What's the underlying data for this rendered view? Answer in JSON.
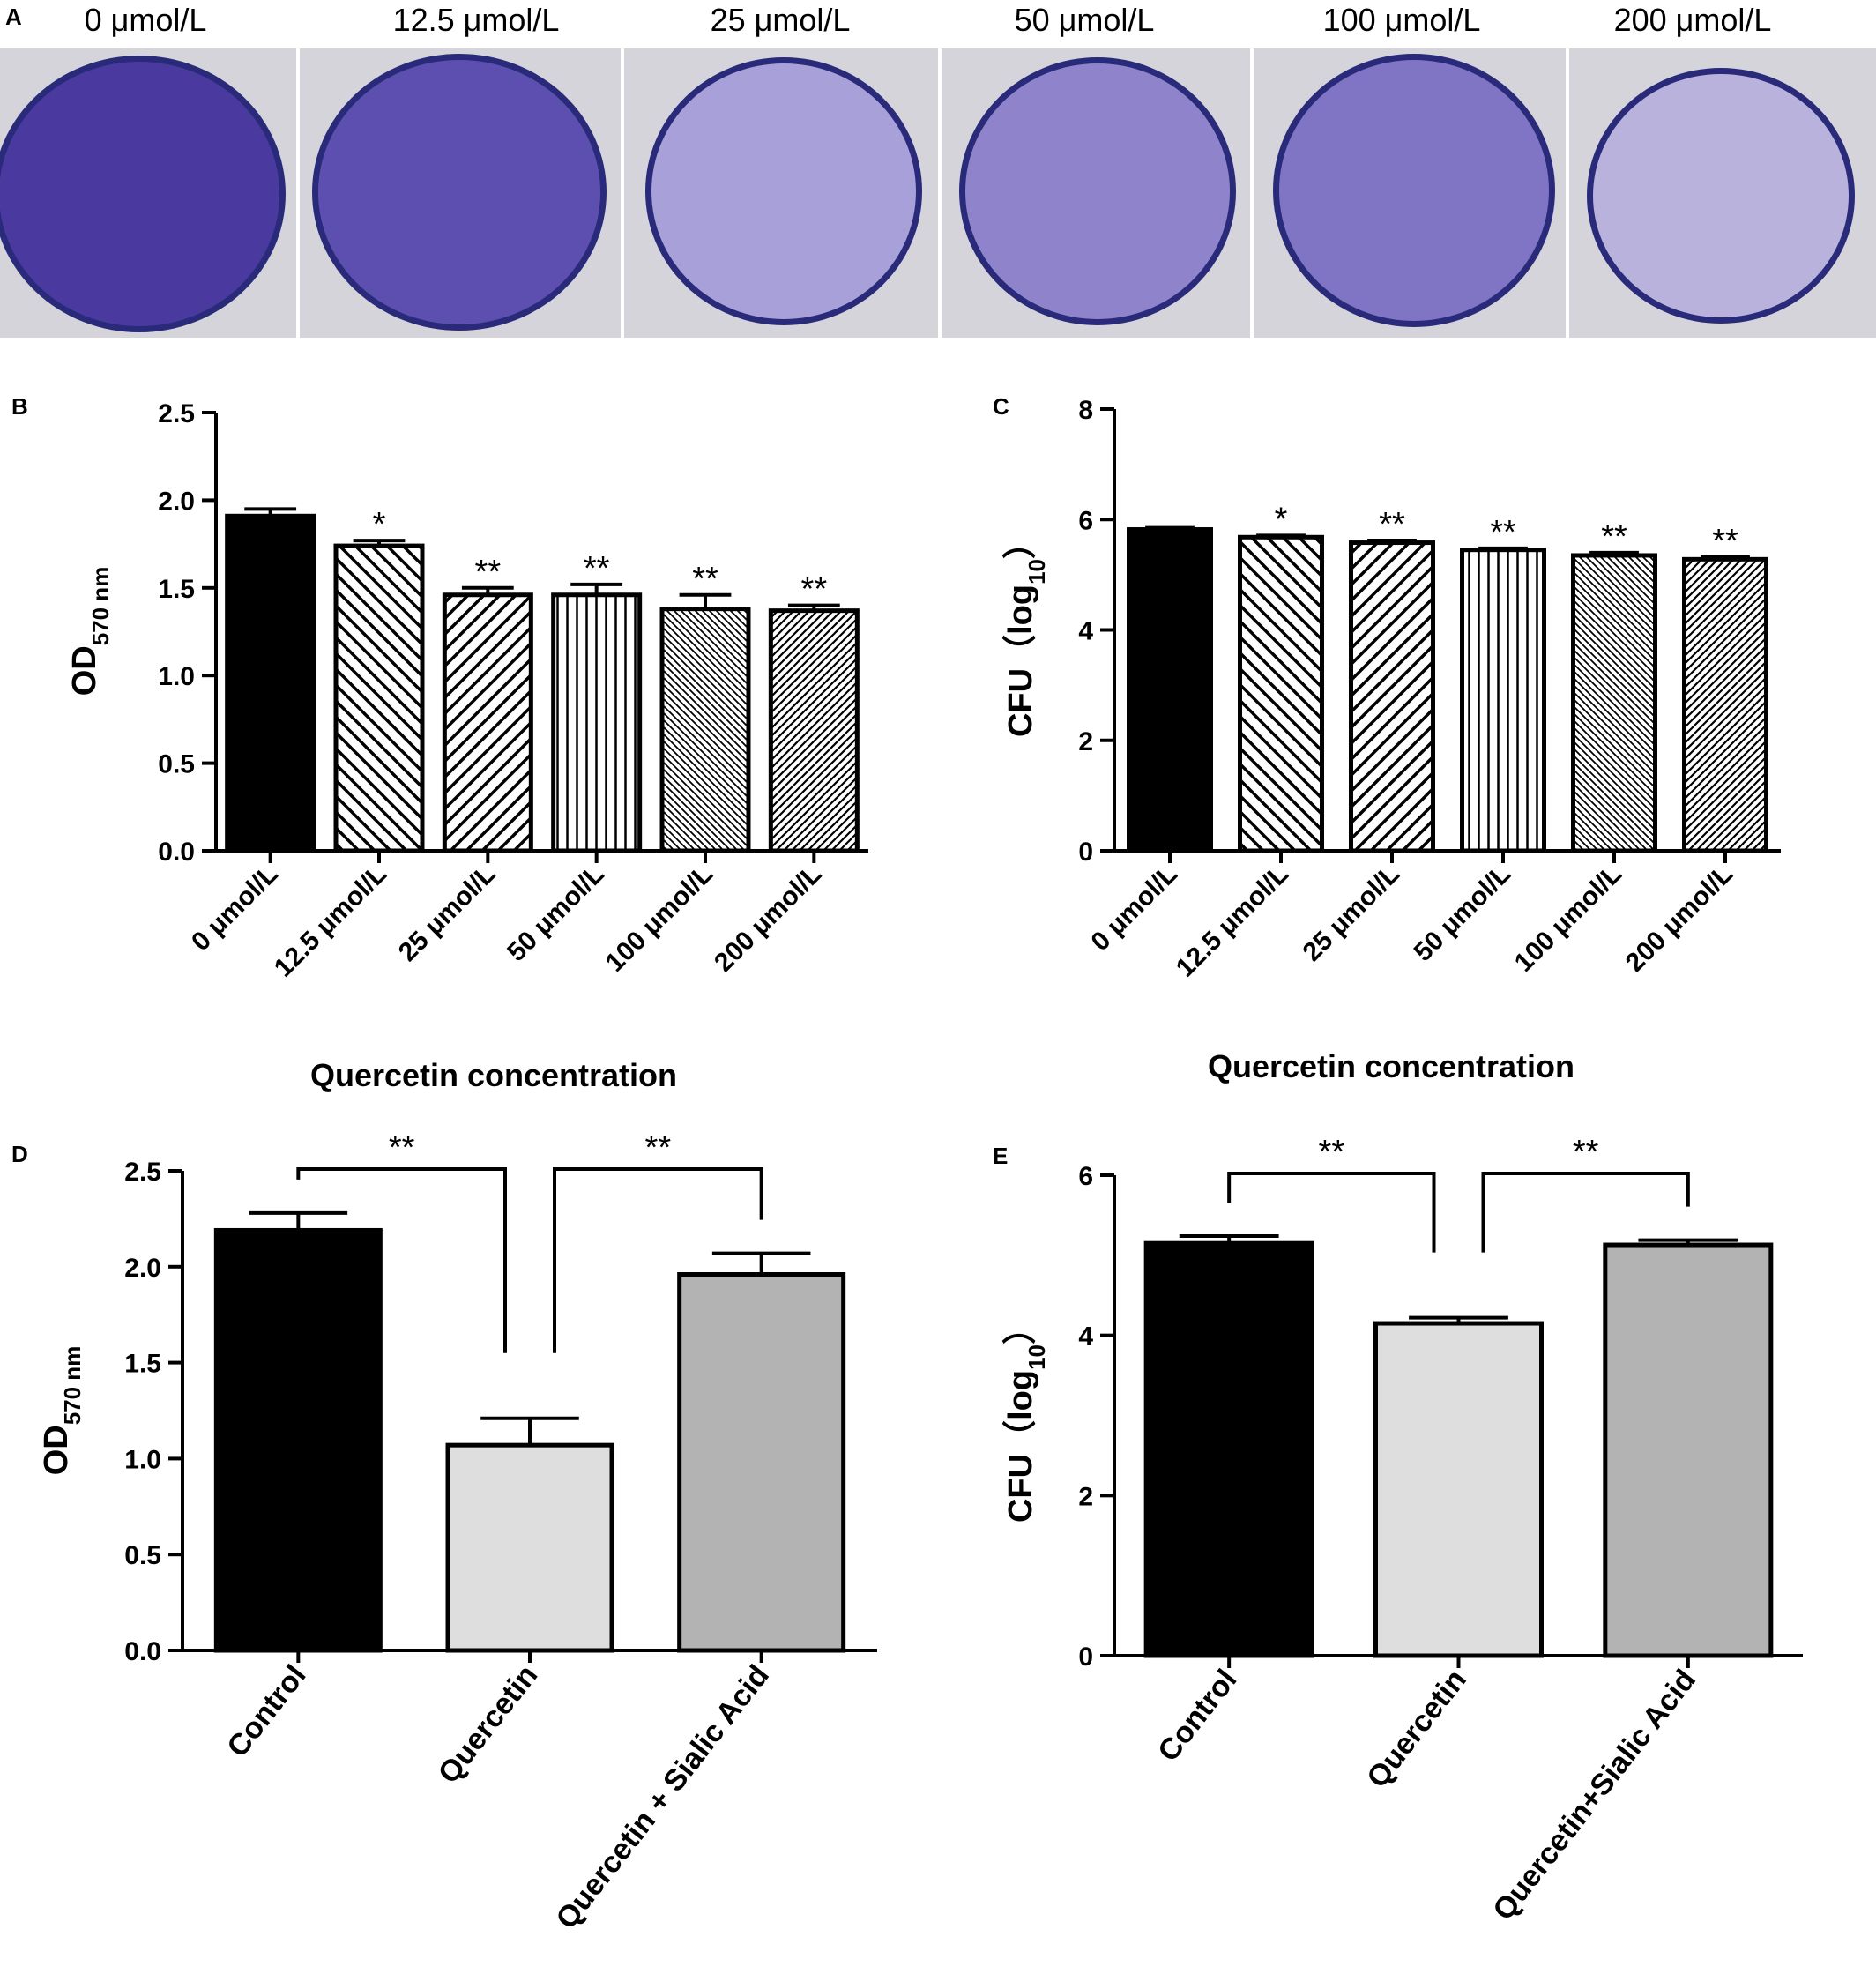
{
  "panel_a": {
    "letter": "A",
    "wells": [
      {
        "label": "0 μmol/L",
        "stain": "#4a3aa0"
      },
      {
        "label": "12.5 μmol/L",
        "stain": "#5c4fb0"
      },
      {
        "label": "25 μmol/L",
        "stain": "#a8a0d8"
      },
      {
        "label": "50 μmol/L",
        "stain": "#8f84cc"
      },
      {
        "label": "100 μmol/L",
        "stain": "#8074c4"
      },
      {
        "label": "200 μmol/L",
        "stain": "#b8b2dc"
      }
    ]
  },
  "chart_data": [
    {
      "letter": "B",
      "type": "bar",
      "ylabel": "OD",
      "ylabel_sub": "570 nm",
      "xlabel": "Quercetin concentration",
      "ylim": [
        0,
        2.5
      ],
      "yticks": [
        "0.0",
        "0.5",
        "1.0",
        "1.5",
        "2.0",
        "2.5"
      ],
      "categories": [
        "0 μmol/L",
        "12.5 μmol/L",
        "25 μmol/L",
        "50 μmol/L",
        "100 μmol/L",
        "200 μmol/L"
      ],
      "values": [
        1.91,
        1.74,
        1.46,
        1.46,
        1.38,
        1.37
      ],
      "errors": [
        0.04,
        0.03,
        0.04,
        0.06,
        0.08,
        0.03
      ],
      "significance": [
        "",
        "*",
        "**",
        "**",
        "**",
        "**"
      ],
      "patterns": [
        "solid",
        "back",
        "fwd",
        "vert",
        "backfine",
        "fwdfine"
      ]
    },
    {
      "letter": "C",
      "type": "bar",
      "ylabel": "CFU（log",
      "ylabel_sub": "10",
      "ylabel_end": "）",
      "xlabel": "Quercetin concentration",
      "ylim": [
        0,
        8
      ],
      "yticks": [
        "0",
        "2",
        "4",
        "6",
        "8"
      ],
      "categories": [
        "0 μmol/L",
        "12.5 μmol/L",
        "25 μmol/L",
        "50 μmol/L",
        "100 μmol/L",
        "200 μmol/L"
      ],
      "values": [
        5.82,
        5.68,
        5.58,
        5.45,
        5.35,
        5.28
      ],
      "errors": [
        0.03,
        0.03,
        0.04,
        0.03,
        0.05,
        0.04
      ],
      "significance": [
        "",
        "*",
        "**",
        "**",
        "**",
        "**"
      ],
      "patterns": [
        "solid",
        "back",
        "fwd",
        "vert",
        "backfine",
        "fwdfine"
      ]
    },
    {
      "letter": "D",
      "type": "bar",
      "ylabel": "OD",
      "ylabel_sub": "570 nm",
      "xlabel": "",
      "ylim": [
        0,
        2.5
      ],
      "yticks": [
        "0.0",
        "0.5",
        "1.0",
        "1.5",
        "2.0",
        "2.5"
      ],
      "categories": [
        "Control",
        "Quercetin",
        "Quercetin + Sialic Acid"
      ],
      "values": [
        2.19,
        1.07,
        1.96
      ],
      "errors": [
        0.09,
        0.14,
        0.11
      ],
      "fills": [
        "#000000",
        "#dedede",
        "#b3b3b3"
      ],
      "brackets": [
        {
          "from": 0,
          "to": 1,
          "label": "**"
        },
        {
          "from": 1,
          "to": 2,
          "label": "**"
        }
      ]
    },
    {
      "letter": "E",
      "type": "bar",
      "ylabel": "CFU（log",
      "ylabel_sub": "10",
      "ylabel_end": "）",
      "xlabel": "",
      "ylim": [
        0,
        6
      ],
      "yticks": [
        "0",
        "2",
        "4",
        "6"
      ],
      "categories": [
        "Control",
        "Quercetin",
        "Quercetin+Sialic Acid"
      ],
      "values": [
        5.15,
        4.15,
        5.13
      ],
      "errors": [
        0.09,
        0.07,
        0.06
      ],
      "fills": [
        "#000000",
        "#dedede",
        "#b3b3b3"
      ],
      "brackets": [
        {
          "from": 0,
          "to": 1,
          "label": "**"
        },
        {
          "from": 1,
          "to": 2,
          "label": "**"
        }
      ]
    }
  ]
}
